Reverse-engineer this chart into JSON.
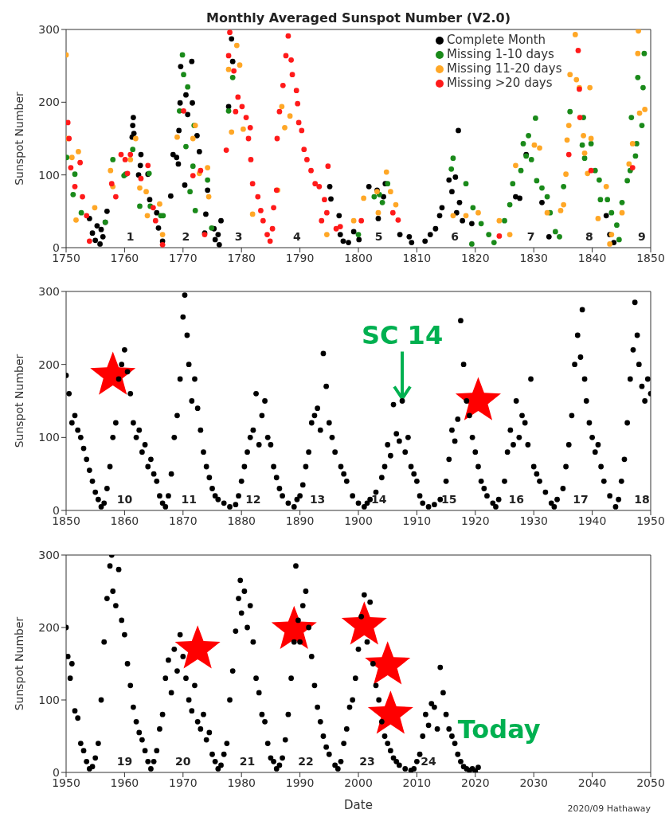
{
  "chart_data": [
    {
      "type": "scatter",
      "title": "Monthly Averaged Sunspot Number (V2.0)",
      "ylabel": "Sunspot Number",
      "xlim": [
        1750,
        1850
      ],
      "xticks": [
        1750,
        1760,
        1770,
        1780,
        1790,
        1800,
        1810,
        1820,
        1830,
        1840,
        1850
      ],
      "ylim": [
        0,
        300
      ],
      "yticks": [
        0,
        100,
        200,
        300
      ],
      "legend": "top right",
      "series": [
        {
          "name": "Complete Month",
          "color": "#000000",
          "x": [
            1754,
            1754.5,
            1755,
            1755.3,
            1755.8,
            1756,
            1756.3,
            1756.7,
            1757,
            1761.5,
            1761.4,
            1761.6,
            1761.3,
            1762.8,
            1762.4,
            1764,
            1762.7,
            1764.3,
            1765.5,
            1766.5,
            1765.8,
            1767.9,
            1768.3,
            1768.9,
            1769.3,
            1769.5,
            1769.6,
            1770.5,
            1771.5,
            1770.8,
            1771.6,
            1772.4,
            1772.8,
            1770.3,
            1769.2,
            1774.2,
            1773.9,
            1773.7,
            1775.3,
            1775.5,
            1776.2,
            1776.5,
            1776,
            1778.3,
            1778.5,
            1777.8,
            1795.1,
            1795.3,
            1796.7,
            1796.9,
            1797.4,
            1798.3,
            1799.2,
            1800.1,
            1801.8,
            1803.2,
            1804.3,
            1804.6,
            1803.4,
            1807.1,
            1808.7,
            1809.1,
            1811.4,
            1812.3,
            1813.2,
            1813.9,
            1814.3,
            1815.5,
            1816,
            1817.1,
            1816.6,
            1817.3,
            1816.8,
            1817.8,
            1819.4,
            1826.9,
            1828.7,
            1827.6,
            1831.4,
            1832.6,
            1842.4,
            1843,
            1843.7
          ],
          "values": [
            40,
            20,
            10,
            30,
            5,
            25,
            15,
            35,
            50,
            179,
            168,
            157,
            152,
            128,
            100,
            101,
            113,
            66,
            48,
            9,
            27,
            71,
            128,
            124,
            161,
            199,
            249,
            210,
            256,
            183,
            199,
            154,
            132,
            86,
            115,
            79,
            46,
            20,
            26,
            11,
            4,
            37,
            18,
            287,
            256,
            194,
            84,
            67,
            44,
            18,
            9,
            7,
            22,
            11,
            84,
            79,
            70,
            88,
            40,
            18,
            15,
            7,
            9,
            18,
            26,
            44,
            55,
            93,
            77,
            161,
            97,
            62,
            48,
            37,
            33,
            70,
            128,
            68,
            62,
            15,
            44,
            18,
            7
          ]
        },
        {
          "name": "Missing 1-10 days",
          "color": "#1a8a1a",
          "x": [
            1750.1,
            1751.5,
            1751.2,
            1752.6,
            1756.7,
            1758,
            1759.9,
            1760.2,
            1761.4,
            1762.6,
            1764.2,
            1764.4,
            1766.2,
            1766.6,
            1769.9,
            1770.1,
            1770.8,
            1769.4,
            1770.5,
            1771.7,
            1771.9,
            1771.2,
            1772.1,
            1774.2,
            1774.9,
            1778.5,
            1777.8,
            1800,
            1802.7,
            1803.6,
            1805,
            1804.1,
            1815.9,
            1816.2,
            1818.4,
            1819.6,
            1821,
            1819.4,
            1822.3,
            1823.2,
            1825,
            1825.9,
            1826.4,
            1827.8,
            1828.2,
            1829.1,
            1830.3,
            1828.7,
            1829.6,
            1830.5,
            1831.4,
            1832.3,
            1832.8,
            1833.7,
            1834.4,
            1835.1,
            1836.2,
            1838.5,
            1838.3,
            1838.7,
            1839.8,
            1840.5,
            1841.2,
            1841.4,
            1842.6,
            1843.3,
            1844.2,
            1844.6,
            1845.1,
            1846,
            1846.5,
            1847.4,
            1847.6,
            1846.7,
            1847.8,
            1848.7,
            1848.9,
            1848.5
          ],
          "values": [
            124,
            101,
            73,
            48,
            35,
            121,
            99,
            101,
            135,
            57,
            102,
            57,
            44,
            44,
            265,
            238,
            221,
            188,
            139,
            112,
            168,
            77,
            51,
            93,
            27,
            234,
            188,
            18,
            70,
            73,
            88,
            62,
            108,
            123,
            88,
            55,
            33,
            5,
            18,
            7,
            37,
            59,
            88,
            106,
            143,
            154,
            178,
            126,
            121,
            92,
            82,
            70,
            48,
            22,
            15,
            84,
            187,
            179,
            141,
            123,
            143,
            106,
            93,
            66,
            66,
            48,
            31,
            11,
            62,
            92,
            106,
            126,
            143,
            179,
            234,
            220,
            267,
            168
          ]
        },
        {
          "name": "Missing 11-20 days",
          "color": "#ffa726",
          "x": [
            1750,
            1750.1,
            1751,
            1752.1,
            1751.7,
            1754.9,
            1757.6,
            1758,
            1761,
            1761.9,
            1762.6,
            1763.7,
            1763.9,
            1766,
            1766.5,
            1769,
            1771.7,
            1772.1,
            1772.8,
            1774.2,
            1774.4,
            1777.8,
            1778.3,
            1779.2,
            1779.7,
            1780.3,
            1781.9,
            1786.2,
            1786.9,
            1787.4,
            1788.3,
            1794.6,
            1799.2,
            1800.9,
            1803.2,
            1804.8,
            1805.5,
            1803.4,
            1806.4,
            1816.2,
            1818.4,
            1820.5,
            1824.1,
            1825.9,
            1826.9,
            1830.1,
            1831,
            1832.3,
            1834.6,
            1835.1,
            1835.5,
            1835.7,
            1836,
            1836.2,
            1837.1,
            1837.3,
            1837.8,
            1838.5,
            1839.6,
            1839.8,
            1838.7,
            1839.2,
            1841,
            1842.4,
            1843.3,
            1843,
            1845.1,
            1846.3,
            1846.9,
            1847.8,
            1848.1,
            1849,
            1847.9
          ],
          "values": [
            265,
            150,
            124,
            132,
            38,
            55,
            106,
            84,
            121,
            150,
            82,
            77,
            44,
            60,
            18,
            152,
            150,
            168,
            102,
            110,
            70,
            245,
            159,
            278,
            251,
            163,
            46,
            79,
            194,
            165,
            181,
            18,
            37,
            68,
            77,
            104,
            77,
            48,
            59,
            44,
            44,
            48,
            37,
            18,
            113,
            141,
            137,
            48,
            51,
            59,
            101,
            148,
            168,
            238,
            293,
            231,
            220,
            154,
            220,
            150,
            130,
            102,
            40,
            84,
            18,
            5,
            48,
            115,
            143,
            267,
            185,
            190,
            298
          ]
        },
        {
          "name": "Missing >20 days",
          "color": "#ff1a1a",
          "x": [
            1750.3,
            1750.5,
            1750.8,
            1751.5,
            1752.4,
            1752.8,
            1753.5,
            1754,
            1757.8,
            1758.5,
            1759.4,
            1760.1,
            1760.5,
            1761,
            1762.8,
            1764,
            1764.9,
            1765.3,
            1766.5,
            1770.1,
            1771.7,
            1773,
            1773.7,
            1777.4,
            1777.8,
            1778,
            1778.7,
            1779,
            1779.4,
            1780.1,
            1780.8,
            1781.5,
            1781.2,
            1781.6,
            1781.9,
            1782.8,
            1783.3,
            1783.7,
            1784.4,
            1784.9,
            1785.3,
            1785.5,
            1786,
            1786.1,
            1786.5,
            1787.1,
            1787.6,
            1788,
            1788.5,
            1788.7,
            1789.4,
            1789.6,
            1789.8,
            1790.3,
            1790.7,
            1791.2,
            1791.9,
            1792.6,
            1793.3,
            1794.2,
            1794.6,
            1793.7,
            1794.8,
            1796.2,
            1796.9,
            1800.5,
            1805.9,
            1806.8,
            1824.1,
            1836,
            1837.6,
            1837.8,
            1837.9,
            1839.8,
            1846.9
          ],
          "values": [
            172,
            150,
            110,
            84,
            117,
            70,
            44,
            9,
            88,
            70,
            128,
            121,
            102,
            128,
            95,
            113,
            55,
            37,
            4,
            188,
            99,
            106,
            18,
            134,
            264,
            296,
            243,
            187,
            207,
            194,
            179,
            165,
            150,
            121,
            88,
            70,
            51,
            37,
            18,
            9,
            26,
            55,
            79,
            150,
            187,
            223,
            264,
            291,
            258,
            238,
            216,
            198,
            172,
            161,
            135,
            121,
            106,
            88,
            84,
            66,
            48,
            37,
            112,
            26,
            29,
            37,
            48,
            38,
            16,
            128,
            271,
            218,
            179,
            106,
            110
          ]
        }
      ],
      "annotations": [
        "1",
        "2",
        "3",
        "4",
        "5",
        "6",
        "7",
        "8",
        "9"
      ]
    },
    {
      "type": "scatter",
      "ylabel": "Sunspot Number",
      "xlim": [
        1850,
        1950
      ],
      "xticks": [
        1850,
        1860,
        1870,
        1880,
        1890,
        1900,
        1910,
        1920,
        1930,
        1940,
        1950
      ],
      "ylim": [
        0,
        300
      ],
      "yticks": [
        0,
        100,
        200,
        300
      ],
      "series": [
        {
          "color": "#000000",
          "x": [
            1850,
            1850.5,
            1851,
            1851.5,
            1852,
            1852.5,
            1853,
            1853.5,
            1854,
            1854.5,
            1855,
            1855.5,
            1856,
            1856.5,
            1857,
            1857.5,
            1858,
            1858.5,
            1859,
            1859.5,
            1860,
            1860.5,
            1861,
            1861.5,
            1862,
            1862.5,
            1863,
            1863.5,
            1864,
            1864.5,
            1865,
            1865.5,
            1866,
            1866.5,
            1867,
            1867.5,
            1868,
            1868.5,
            1869,
            1869.5,
            1870,
            1870.3,
            1870.7,
            1871,
            1871.5,
            1872,
            1872.5,
            1873,
            1873.5,
            1874,
            1874.5,
            1875,
            1875.5,
            1876,
            1877,
            1878,
            1879,
            1879.5,
            1880,
            1880.5,
            1881,
            1881.5,
            1882,
            1882.5,
            1883,
            1883.5,
            1884,
            1884.5,
            1885,
            1885.5,
            1886,
            1886.5,
            1887,
            1888,
            1889,
            1889.5,
            1890,
            1890.5,
            1891,
            1891.5,
            1892,
            1892.5,
            1893,
            1893.5,
            1894,
            1894.5,
            1895,
            1895.5,
            1896,
            1897,
            1897.5,
            1898,
            1899,
            1900,
            1901,
            1901.5,
            1902,
            1903,
            1904,
            1904.5,
            1905,
            1905.5,
            1906,
            1906.5,
            1907,
            1907.5,
            1908,
            1908.5,
            1909,
            1909.5,
            1910,
            1910.5,
            1911,
            1912,
            1913,
            1914,
            1915,
            1915.5,
            1916,
            1916.5,
            1917,
            1917.5,
            1918,
            1918.5,
            1919,
            1919.5,
            1920,
            1920.5,
            1921,
            1921.5,
            1922,
            1923,
            1923.5,
            1924,
            1925,
            1925.5,
            1926,
            1926.5,
            1927,
            1927.5,
            1928,
            1928.5,
            1929,
            1929.5,
            1930,
            1930.5,
            1931,
            1932,
            1933,
            1933.5,
            1934,
            1935,
            1935.5,
            1936,
            1936.5,
            1937,
            1937.5,
            1938,
            1938.3,
            1938.7,
            1939,
            1939.5,
            1940,
            1940.5,
            1941,
            1941.5,
            1942,
            1943,
            1944,
            1944.5,
            1945,
            1945.5,
            1946,
            1946.5,
            1947,
            1947.3,
            1947.7,
            1948,
            1948.5,
            1949,
            1949.5,
            1950
          ],
          "values": [
            185,
            160,
            120,
            130,
            110,
            100,
            85,
            70,
            55,
            40,
            25,
            15,
            5,
            10,
            30,
            60,
            100,
            120,
            180,
            200,
            220,
            190,
            160,
            120,
            100,
            110,
            80,
            90,
            60,
            70,
            50,
            40,
            20,
            10,
            5,
            20,
            50,
            100,
            130,
            180,
            265,
            295,
            240,
            200,
            150,
            180,
            140,
            110,
            80,
            60,
            45,
            30,
            20,
            15,
            10,
            5,
            8,
            20,
            40,
            60,
            80,
            100,
            110,
            160,
            90,
            130,
            150,
            100,
            90,
            60,
            45,
            30,
            20,
            10,
            5,
            15,
            20,
            35,
            60,
            80,
            120,
            130,
            140,
            110,
            215,
            170,
            120,
            100,
            80,
            60,
            50,
            40,
            20,
            10,
            5,
            10,
            15,
            25,
            45,
            60,
            90,
            75,
            145,
            105,
            95,
            150,
            80,
            100,
            60,
            50,
            40,
            20,
            10,
            5,
            8,
            15,
            40,
            70,
            110,
            95,
            125,
            260,
            200,
            150,
            130,
            100,
            80,
            60,
            40,
            30,
            20,
            10,
            5,
            15,
            40,
            80,
            110,
            90,
            150,
            100,
            130,
            120,
            90,
            180,
            60,
            50,
            40,
            25,
            10,
            5,
            15,
            30,
            60,
            90,
            130,
            200,
            240,
            210,
            275,
            180,
            150,
            120,
            100,
            80,
            90,
            60,
            40,
            20,
            5,
            15,
            40,
            70,
            120,
            180,
            220,
            285,
            240,
            200,
            170,
            150,
            180,
            160
          ]
        }
      ],
      "annotations": [
        "10",
        "11",
        "12",
        "13",
        "14",
        "15",
        "16",
        "17",
        "18",
        {
          "text": "SC 14",
          "x": 1907.5,
          "y": 150
        }
      ]
    },
    {
      "type": "scatter",
      "xlabel": "Date",
      "ylabel": "Sunspot Number",
      "xlim": [
        1950,
        2050
      ],
      "xticks": [
        1950,
        1960,
        1970,
        1980,
        1990,
        2000,
        2010,
        2020,
        2030,
        2040,
        2050
      ],
      "ylim": [
        0,
        300
      ],
      "yticks": [
        0,
        100,
        200,
        300
      ],
      "series": [
        {
          "color": "#000000",
          "x": [
            1950,
            1950.3,
            1950.7,
            1951,
            1951.5,
            1952,
            1952.5,
            1953,
            1953.5,
            1954,
            1954.5,
            1955,
            1955.5,
            1956,
            1956.5,
            1957,
            1957.5,
            1957.8,
            1958,
            1958.5,
            1959,
            1959.5,
            1960,
            1960.5,
            1961,
            1961.5,
            1962,
            1962.5,
            1963,
            1963.5,
            1964,
            1964.5,
            1965,
            1965.5,
            1966,
            1966.5,
            1967,
            1967.5,
            1968,
            1968.5,
            1969,
            1969.5,
            1970,
            1970.5,
            1971,
            1971.5,
            1972,
            1972.5,
            1973,
            1973.5,
            1974,
            1974.5,
            1975,
            1975.5,
            1976,
            1976.5,
            1977,
            1977.5,
            1978,
            1978.5,
            1979,
            1979.5,
            1979.8,
            1980,
            1980.5,
            1981,
            1981.5,
            1982,
            1982.5,
            1983,
            1983.5,
            1984,
            1984.5,
            1985,
            1985.5,
            1986,
            1986.5,
            1987,
            1987.5,
            1988,
            1988.5,
            1989,
            1989.3,
            1989.7,
            1990,
            1990.5,
            1991,
            1991.5,
            1992,
            1992.5,
            1993,
            1993.5,
            1994,
            1994.5,
            1995,
            1996,
            1996.5,
            1997,
            1997.5,
            1998,
            1998.5,
            1999,
            1999.5,
            2000,
            2000.5,
            2001,
            2001.5,
            2002,
            2002.5,
            2003,
            2003.5,
            2004,
            2004.5,
            2005,
            2005.5,
            2006,
            2006.5,
            2007,
            2008,
            2009,
            2009.5,
            2010,
            2010.5,
            2011,
            2011.5,
            2012,
            2012.5,
            2013,
            2013.5,
            2014,
            2014.5,
            2015,
            2015.5,
            2016,
            2016.5,
            2017,
            2017.5,
            2018,
            2018.5,
            2019,
            2019.5,
            2020,
            2020.5
          ],
          "values": [
            200,
            160,
            130,
            150,
            85,
            75,
            40,
            30,
            15,
            5,
            8,
            20,
            40,
            100,
            180,
            240,
            285,
            300,
            250,
            230,
            280,
            210,
            190,
            150,
            120,
            90,
            70,
            55,
            45,
            30,
            15,
            5,
            15,
            30,
            60,
            80,
            130,
            155,
            110,
            170,
            140,
            190,
            160,
            130,
            100,
            85,
            120,
            70,
            60,
            80,
            45,
            55,
            25,
            15,
            5,
            10,
            25,
            40,
            100,
            140,
            195,
            240,
            265,
            220,
            250,
            200,
            230,
            180,
            130,
            110,
            80,
            70,
            40,
            20,
            15,
            5,
            10,
            20,
            45,
            80,
            130,
            180,
            285,
            210,
            180,
            230,
            250,
            200,
            160,
            120,
            90,
            70,
            50,
            35,
            25,
            10,
            5,
            15,
            40,
            60,
            90,
            100,
            130,
            170,
            215,
            245,
            180,
            235,
            150,
            120,
            100,
            70,
            50,
            40,
            30,
            20,
            15,
            10,
            5,
            3,
            5,
            15,
            25,
            50,
            80,
            65,
            95,
            90,
            60,
            145,
            110,
            80,
            60,
            50,
            40,
            25,
            15,
            8,
            5,
            3,
            5,
            2,
            7
          ]
        }
      ],
      "annotations": [
        "19",
        "20",
        "21",
        "22",
        "23",
        "24",
        "Today",
        "2020/09 Hathaway"
      ]
    }
  ]
}
